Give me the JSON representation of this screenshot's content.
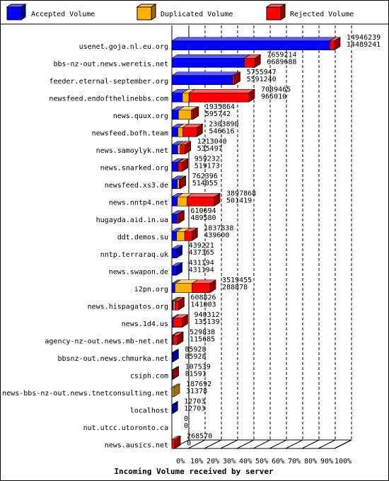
{
  "chart_data": {
    "type": "bar",
    "orientation": "horizontal",
    "stacked": true,
    "title": "Incoming Volume received by server",
    "xlabel": "Incoming Volume received by server",
    "x_ticks": [
      "0%",
      "10%",
      "20%",
      "30%",
      "40%",
      "50%",
      "60%",
      "70%",
      "80%",
      "90%",
      "100%"
    ],
    "xlim": [
      0,
      100
    ],
    "legend_position": "top",
    "colors": {
      "accepted": "#0000ff",
      "duplicated": "#ffb000",
      "rejected": "#ff0000",
      "frame": "#000000"
    },
    "series": [
      {
        "name": "Accepted Volume",
        "key": "accepted"
      },
      {
        "name": "Duplicated Volume",
        "key": "duplicated"
      },
      {
        "name": "Rejected Volume",
        "key": "rejected"
      }
    ],
    "categories": [
      {
        "name": "usenet.goja.nl.eu.org",
        "pct": 100,
        "accepted": 97,
        "duplicated": 0,
        "rejected": 3,
        "total_label": "14946239",
        "accepted_label": "14489241"
      },
      {
        "name": "bbs-nz-out.news.weretis.net",
        "pct": 51,
        "accepted": 44.8,
        "duplicated": 0,
        "rejected": 6.4,
        "total_label": "7659214",
        "accepted_label": "6689688"
      },
      {
        "name": "feeder.eternal-september.org",
        "pct": 38.5,
        "accepted": 37.4,
        "duplicated": 0,
        "rejected": 1.1,
        "total_label": "5755947",
        "accepted_label": "5591240"
      },
      {
        "name": "newsfeed.endofthelinebbs.com",
        "pct": 47.4,
        "accepted": 6.5,
        "duplicated": 4,
        "rejected": 36.9,
        "total_label": "7089465",
        "accepted_label": "965010"
      },
      {
        "name": "news.quux.org",
        "pct": 13,
        "accepted": 4,
        "duplicated": 8,
        "rejected": 1,
        "total_label": "1935864",
        "accepted_label": "595742"
      },
      {
        "name": "newsfeed.bofh.team",
        "pct": 15.4,
        "accepted": 3.7,
        "duplicated": 3,
        "rejected": 8.7,
        "total_label": "2303890",
        "accepted_label": "546616"
      },
      {
        "name": "news.samoylyk.net",
        "pct": 8.1,
        "accepted": 3.6,
        "duplicated": 1.5,
        "rejected": 3,
        "total_label": "1213040",
        "accepted_label": "535497"
      },
      {
        "name": "news.snarked.org",
        "pct": 6.4,
        "accepted": 3.5,
        "duplicated": 0.4,
        "rejected": 2.5,
        "total_label": "959232",
        "accepted_label": "519173"
      },
      {
        "name": "newsfeed.xs3.de",
        "pct": 5.1,
        "accepted": 3.4,
        "duplicated": 1.2,
        "rejected": 0.5,
        "total_label": "762396",
        "accepted_label": "514055"
      },
      {
        "name": "news.nntp4.net",
        "pct": 26.1,
        "accepted": 3.4,
        "duplicated": 6,
        "rejected": 16.7,
        "total_label": "3897868",
        "accepted_label": "501419"
      },
      {
        "name": "hugayda.aid.in.ua",
        "pct": 4.1,
        "accepted": 3.3,
        "duplicated": 0,
        "rejected": 0.8,
        "total_label": "610694",
        "accepted_label": "489580"
      },
      {
        "name": "ddt.demos.su",
        "pct": 12.3,
        "accepted": 2.9,
        "duplicated": 5,
        "rejected": 4.4,
        "total_label": "1837838",
        "accepted_label": "439600"
      },
      {
        "name": "nntp.terraraq.uk",
        "pct": 2.9,
        "accepted": 2.9,
        "duplicated": 0,
        "rejected": 0,
        "total_label": "439221",
        "accepted_label": "437365"
      },
      {
        "name": "news.swapon.de",
        "pct": 2.9,
        "accepted": 2.9,
        "duplicated": 0,
        "rejected": 0,
        "total_label": "431194",
        "accepted_label": "431194"
      },
      {
        "name": "i2pn.org",
        "pct": 23.5,
        "accepted": 1.9,
        "duplicated": 10.5,
        "rejected": 11.1,
        "total_label": "3519455",
        "accepted_label": "288878"
      },
      {
        "name": "news.hispagatos.org",
        "pct": 4.1,
        "accepted": 0.9,
        "duplicated": 1,
        "rejected": 2.2,
        "total_label": "608826",
        "accepted_label": "141003"
      },
      {
        "name": "news.1d4.us",
        "pct": 6.3,
        "accepted": 0.9,
        "duplicated": 0,
        "rejected": 5.4,
        "total_label": "940312",
        "accepted_label": "135139"
      },
      {
        "name": "agency-nz-out.news.mb-net.net",
        "pct": 3.5,
        "accepted": 0.8,
        "duplicated": 0,
        "rejected": 2.7,
        "total_label": "529838",
        "accepted_label": "115685"
      },
      {
        "name": "bbsnz-out.news.chmurka.net",
        "pct": 0.6,
        "accepted": 0.6,
        "duplicated": 0,
        "rejected": 0,
        "total_label": "85928",
        "accepted_label": "85928"
      },
      {
        "name": "csiph.com",
        "pct": 0.7,
        "accepted": 0.55,
        "duplicated": 0,
        "rejected": 0.15,
        "total_label": "107539",
        "accepted_label": "81591"
      },
      {
        "name": "news-bbs-nz-out.news.tnetconsulting.net",
        "pct": 1.3,
        "accepted": 0.2,
        "duplicated": 1.1,
        "rejected": 0,
        "total_label": "187692",
        "accepted_label": "31378"
      },
      {
        "name": "localhost",
        "pct": 0.1,
        "accepted": 0.1,
        "duplicated": 0,
        "rejected": 0,
        "total_label": "12703",
        "accepted_label": "12703"
      },
      {
        "name": "nut.utcc.utoronto.ca",
        "pct": 0,
        "accepted": 0,
        "duplicated": 0,
        "rejected": 0,
        "total_label": "0",
        "accepted_label": "0"
      },
      {
        "name": "news.ausics.net",
        "pct": 1.8,
        "accepted": 0,
        "duplicated": 0,
        "rejected": 1.8,
        "total_label": "268570",
        "accepted_label": "0"
      }
    ]
  }
}
